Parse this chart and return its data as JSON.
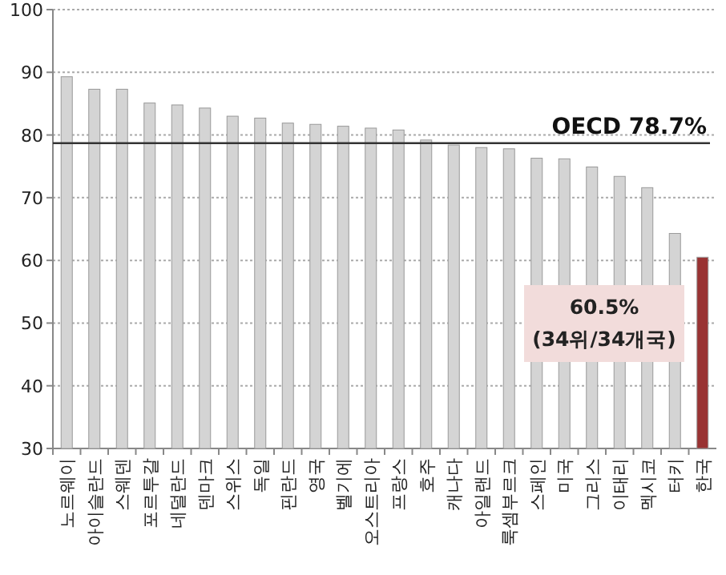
{
  "chart_data": {
    "type": "bar",
    "categories": [
      "노르웨이",
      "아이슬란드",
      "스웨덴",
      "포르투갈",
      "네덜란드",
      "덴마크",
      "스위스",
      "독일",
      "핀란드",
      "영국",
      "벨기에",
      "오스트리아",
      "프랑스",
      "호주",
      "캐나다",
      "아일랜드",
      "룩셈부르크",
      "스페인",
      "미국",
      "그리스",
      "이태리",
      "멕시코",
      "터키",
      "한국"
    ],
    "values": [
      89.3,
      87.3,
      87.3,
      85.1,
      84.8,
      84.3,
      83.0,
      82.7,
      81.9,
      81.7,
      81.4,
      81.1,
      80.8,
      79.2,
      78.4,
      78.0,
      77.8,
      76.3,
      76.2,
      74.9,
      73.4,
      71.6,
      64.3,
      60.5
    ],
    "colors": [
      "#d4d4d4",
      "#d4d4d4",
      "#d4d4d4",
      "#d4d4d4",
      "#d4d4d4",
      "#d4d4d4",
      "#d4d4d4",
      "#d4d4d4",
      "#d4d4d4",
      "#d4d4d4",
      "#d4d4d4",
      "#d4d4d4",
      "#d4d4d4",
      "#d4d4d4",
      "#d4d4d4",
      "#d4d4d4",
      "#d4d4d4",
      "#d4d4d4",
      "#d4d4d4",
      "#d4d4d4",
      "#d4d4d4",
      "#d4d4d4",
      "#d4d4d4",
      "#993333"
    ],
    "ylim": [
      30,
      100
    ],
    "yticks": [
      30,
      40,
      50,
      60,
      70,
      80,
      90,
      100
    ],
    "grid": "y",
    "ref_lines": [
      {
        "axis": "y",
        "value": 78.7,
        "label": "OECD 78.7%",
        "color": "#333333"
      }
    ],
    "annotations": [
      "60.5%",
      "(34위/34개국)"
    ]
  }
}
